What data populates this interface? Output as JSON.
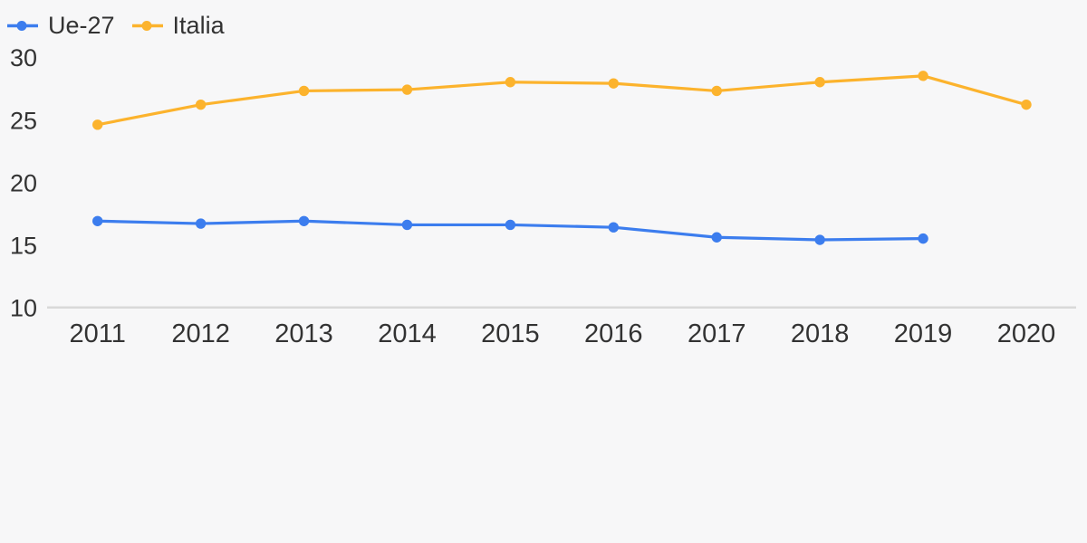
{
  "colors": {
    "background": "#f7f7f8",
    "text": "#333333",
    "grid": "#d9d9d9"
  },
  "legend": {
    "items": [
      {
        "label": "Ue-27",
        "color": "#3c7dee"
      },
      {
        "label": "Italia",
        "color": "#fcb32d"
      }
    ]
  },
  "chart_data": {
    "type": "line",
    "x": [
      2011,
      2012,
      2013,
      2014,
      2015,
      2016,
      2017,
      2018,
      2019,
      2020
    ],
    "series": [
      {
        "name": "Ue-27",
        "color": "#3c7dee",
        "values": [
          16.9,
          16.7,
          16.9,
          16.6,
          16.6,
          16.4,
          15.6,
          15.4,
          15.5,
          null
        ]
      },
      {
        "name": "Italia",
        "color": "#fcb32d",
        "values": [
          24.6,
          26.2,
          27.3,
          27.4,
          28.0,
          27.9,
          27.3,
          28.0,
          28.5,
          26.2
        ]
      }
    ],
    "yticks": [
      10,
      15,
      20,
      25,
      30
    ],
    "ylim": [
      10,
      30
    ],
    "title": "",
    "xlabel": "",
    "ylabel": "",
    "grid": "baseline-only",
    "legend_position": "top-left"
  }
}
